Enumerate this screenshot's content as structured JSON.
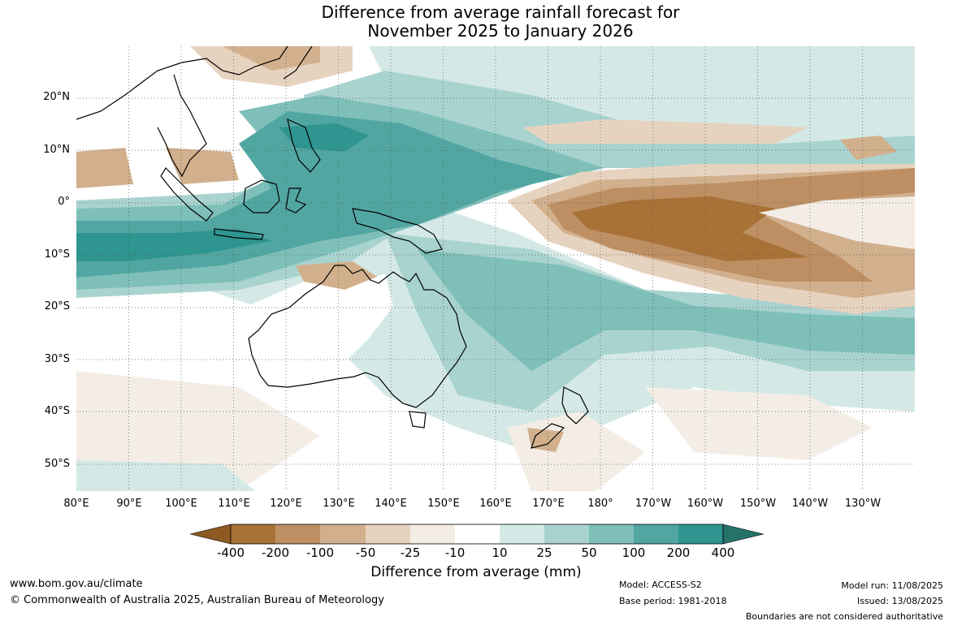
{
  "title": {
    "line1": "Difference from average rainfall forecast for",
    "line2": "November 2025 to January 2026"
  },
  "map": {
    "lat_labels": [
      "20°N",
      "10°N",
      "0°",
      "10°S",
      "20°S",
      "30°S",
      "40°S",
      "50°S"
    ],
    "lon_labels": [
      "80°E",
      "90°E",
      "100°E",
      "110°E",
      "120°E",
      "130°E",
      "140°E",
      "150°E",
      "160°E",
      "170°E",
      "180°",
      "170°W",
      "160°W",
      "150°W",
      "140°W",
      "130°W"
    ]
  },
  "colorbar": {
    "labels": [
      "-400",
      "-200",
      "-100",
      "-50",
      "-25",
      "-10",
      "10",
      "25",
      "50",
      "100",
      "200",
      "400"
    ],
    "colors": {
      "below_400": "#8e5a22",
      "m400_m200": "#a87237",
      "m200_m100": "#bd8f62",
      "m100_m50": "#d2b08d",
      "m50_m25": "#e6d3bf",
      "m25_m10": "#f3ede6",
      "m10_10": "#ffffff",
      "p10_25": "#d4e9e6",
      "p25_50": "#a9d3cf",
      "p50_100": "#7ebfb9",
      "p100_200": "#52a6a2",
      "p200_400": "#2e9590",
      "above_400": "#27716b"
    },
    "title": "Difference from average (mm)"
  },
  "footer": {
    "website": "www.bom.gov.au/climate",
    "copyright": "© Commonwealth of Australia 2025, Australian Bureau of Meteorology",
    "model": "Model: ACCESS-S2",
    "base_period": "Base period: 1981-2018",
    "model_run": "Model run: 11/08/2025",
    "issued": "Issued: 13/08/2025",
    "disclaimer": "Boundaries are not considered authoritative"
  }
}
